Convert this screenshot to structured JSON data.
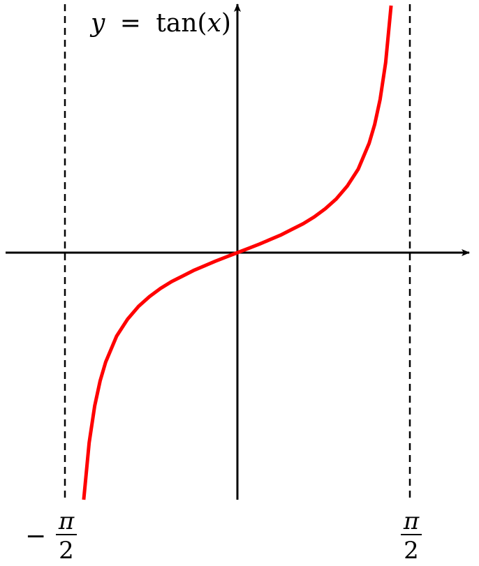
{
  "colors": {
    "curve": "#ff0000",
    "axis": "#000000",
    "background": "#ffffff"
  },
  "chart_data": {
    "type": "line",
    "title": "",
    "xlabel": "",
    "ylabel": "",
    "function": "tan(x)",
    "xlim": [
      -2.0,
      2.0
    ],
    "ylim": [
      -5.8,
      5.8
    ],
    "grid": false,
    "legend": "none",
    "equation_label": {
      "lhs": "y",
      "equals": "=",
      "func": "tan",
      "open_paren": "(",
      "arg": "x",
      "close_paren": ")"
    },
    "asymptotes": [
      {
        "x": -1.5708,
        "label": {
          "sign": "−",
          "numerator": "π",
          "denominator": "2"
        }
      },
      {
        "x": 1.5708,
        "label": {
          "sign": "",
          "numerator": "π",
          "denominator": "2"
        }
      }
    ],
    "series": [
      {
        "x": [
          -1.4,
          -1.35,
          -1.3,
          -1.25,
          -1.2,
          -1.1,
          -1.0,
          -0.9,
          -0.8,
          -0.7,
          -0.6,
          -0.5,
          -0.4,
          -0.3,
          -0.2,
          -0.1,
          0.0,
          0.1,
          0.2,
          0.3,
          0.4,
          0.5,
          0.6,
          0.7,
          0.8,
          0.9,
          1.0,
          1.1,
          1.2,
          1.25,
          1.3,
          1.35,
          1.4
        ],
        "y": [
          -5.8,
          -4.46,
          -3.6,
          -3.01,
          -2.57,
          -1.96,
          -1.56,
          -1.26,
          -1.03,
          -0.84,
          -0.68,
          -0.55,
          -0.42,
          -0.31,
          -0.2,
          -0.1,
          0.0,
          0.1,
          0.2,
          0.31,
          0.42,
          0.55,
          0.68,
          0.84,
          1.03,
          1.26,
          1.56,
          1.96,
          2.57,
          3.01,
          3.6,
          4.46,
          5.8
        ]
      }
    ]
  }
}
